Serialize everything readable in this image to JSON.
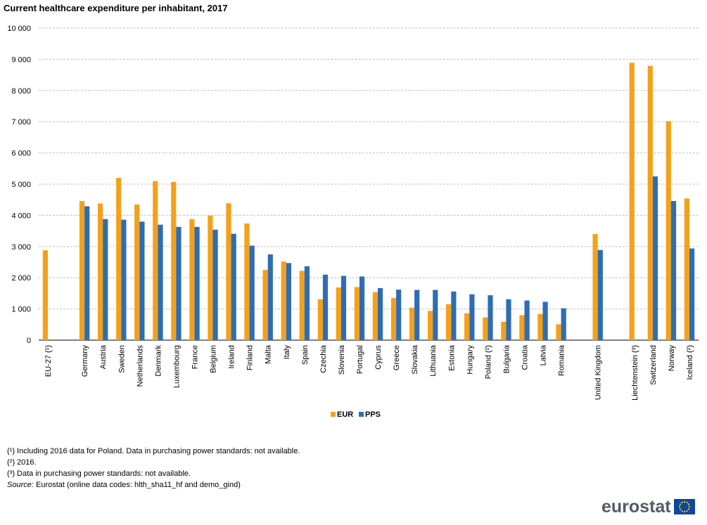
{
  "title": "Current healthcare expenditure per inhabitant, 2017",
  "colors": {
    "eur": "#f3a11a",
    "pps": "#2e6db4",
    "grid": "#bfbfbf"
  },
  "chart_data": {
    "type": "bar",
    "ylim": [
      0,
      10000
    ],
    "yticks": [
      {
        "value": 0,
        "label": "0"
      },
      {
        "value": 1000,
        "label": "1 000"
      },
      {
        "value": 2000,
        "label": "2 000"
      },
      {
        "value": 3000,
        "label": "3 000"
      },
      {
        "value": 4000,
        "label": "4 000"
      },
      {
        "value": 5000,
        "label": "5 000"
      },
      {
        "value": 6000,
        "label": "6 000"
      },
      {
        "value": 7000,
        "label": "7 000"
      },
      {
        "value": 8000,
        "label": "8 000"
      },
      {
        "value": 9000,
        "label": "9 000"
      },
      {
        "value": 10000,
        "label": "10 000"
      }
    ],
    "grid": true,
    "legend_position": "bottom-center",
    "categories": [
      "EU-27 (¹)",
      "",
      "Germany",
      "Austria",
      "Sweden",
      "Netherlands",
      "Denmark",
      "Luxembourg",
      "France",
      "Belgium",
      "Ireland",
      "Finland",
      "Malta",
      "Italy",
      "Spain",
      "Czechia",
      "Slovenia",
      "Portugal",
      "Cyprus",
      "Greece",
      "Slovakia",
      "Lithuania",
      "Estonia",
      "Hungary",
      "Poland (²)",
      "Bulgaria",
      "Croatia",
      "Latvia",
      "Romania",
      "",
      "United Kingdom",
      "",
      "Liechtenstein (³)",
      "Switzerland",
      "Norway",
      "Iceland (²)"
    ],
    "series": [
      {
        "name": "EUR",
        "values": [
          2880,
          null,
          4460,
          4380,
          5200,
          4350,
          5100,
          5070,
          3880,
          3990,
          4390,
          3740,
          2250,
          2520,
          2220,
          1310,
          1690,
          1700,
          1540,
          1350,
          1040,
          940,
          1150,
          860,
          730,
          590,
          800,
          840,
          510,
          null,
          3400,
          null,
          8890,
          8790,
          7020,
          4540
        ]
      },
      {
        "name": "PPS",
        "values": [
          null,
          null,
          4290,
          3880,
          3860,
          3800,
          3700,
          3630,
          3630,
          3540,
          3410,
          3030,
          2750,
          2470,
          2370,
          2100,
          2060,
          2040,
          1670,
          1620,
          1610,
          1610,
          1560,
          1470,
          1440,
          1310,
          1270,
          1230,
          1020,
          null,
          2890,
          null,
          null,
          5250,
          4460,
          2940
        ]
      }
    ]
  },
  "footnotes": [
    "(¹) Including 2016 data for Poland. Data in purchasing power standards: not available.",
    "(²) 2016.",
    "(³) Data in purchasing power standards: not available."
  ],
  "source": {
    "label": "Source:",
    "text": "Eurostat (online data codes: hlth_sha11_hf and demo_gind)"
  },
  "logo_text": "eurostat"
}
